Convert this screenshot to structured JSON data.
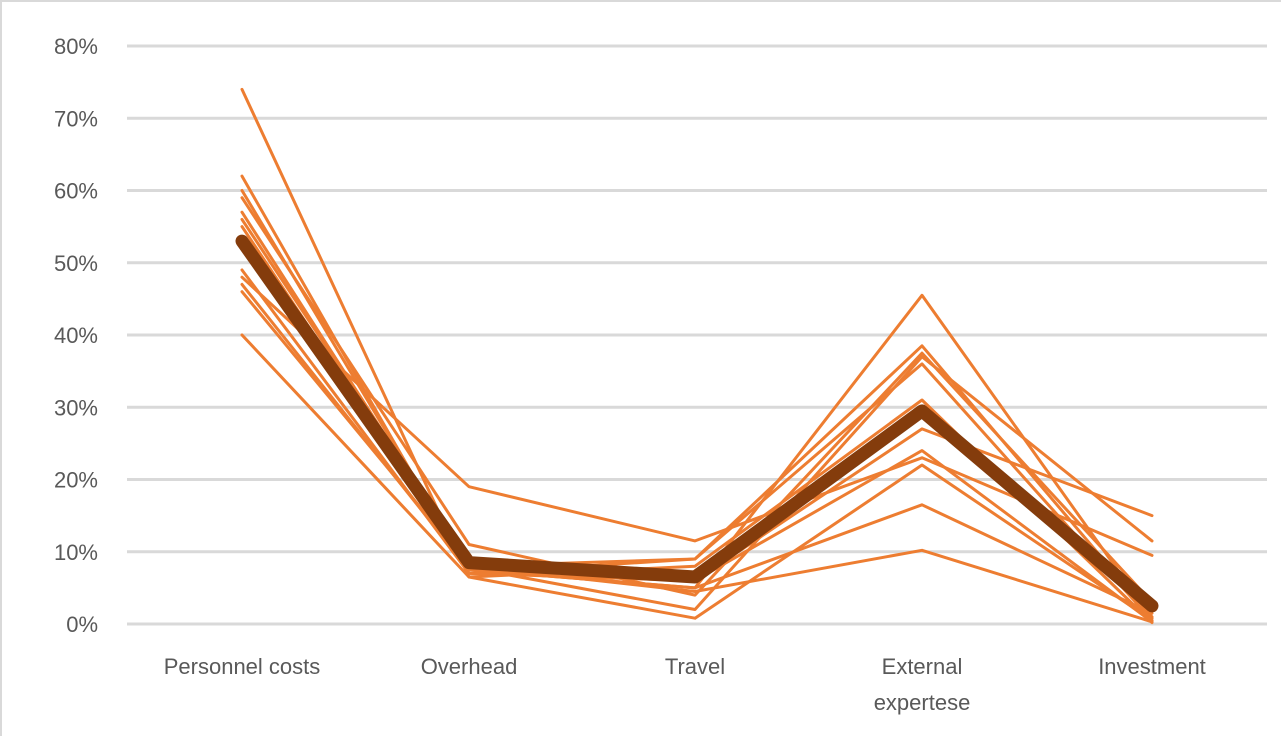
{
  "chart_data": {
    "type": "line",
    "categories": [
      [
        "Personnel costs"
      ],
      [
        "Overhead"
      ],
      [
        "Travel"
      ],
      [
        "External",
        "expertese"
      ],
      [
        "Investment"
      ]
    ],
    "y_tick_labels": [
      "0%",
      "10%",
      "20%",
      "30%",
      "40%",
      "50%",
      "60%",
      "70%",
      "80%"
    ],
    "ylim": [
      0,
      80
    ],
    "grid": true,
    "legend": "none",
    "colors": {
      "series": "#ed7d31",
      "highlight": "#843c0c",
      "grid": "#d9d9d9",
      "axis_text": "#595959"
    },
    "series": [
      {
        "values": [
          74,
          6.5,
          8,
          31,
          0.2
        ]
      },
      {
        "values": [
          62,
          7,
          9,
          38.5,
          1
        ]
      },
      {
        "values": [
          60,
          7.5,
          5,
          45.5,
          0.8
        ]
      },
      {
        "values": [
          59,
          11,
          4,
          37.5,
          3
        ]
      },
      {
        "values": [
          57,
          8,
          9,
          36,
          0.5
        ]
      },
      {
        "values": [
          56,
          8.5,
          6,
          27,
          15
        ]
      },
      {
        "values": [
          55,
          7.8,
          2,
          37,
          11.5
        ]
      },
      {
        "values": [
          49,
          7,
          6,
          24,
          0.3
        ]
      },
      {
        "values": [
          48,
          19,
          11.5,
          23,
          9.5
        ]
      },
      {
        "values": [
          47,
          7.5,
          5,
          16.5,
          1.5
        ]
      },
      {
        "values": [
          46,
          8,
          4.5,
          10.2,
          0.3
        ]
      },
      {
        "values": [
          40,
          6.5,
          0.8,
          22,
          0.5
        ]
      },
      {
        "values": [
          53,
          8.5,
          6.5,
          29.5,
          2.5
        ],
        "highlight": true
      }
    ]
  }
}
